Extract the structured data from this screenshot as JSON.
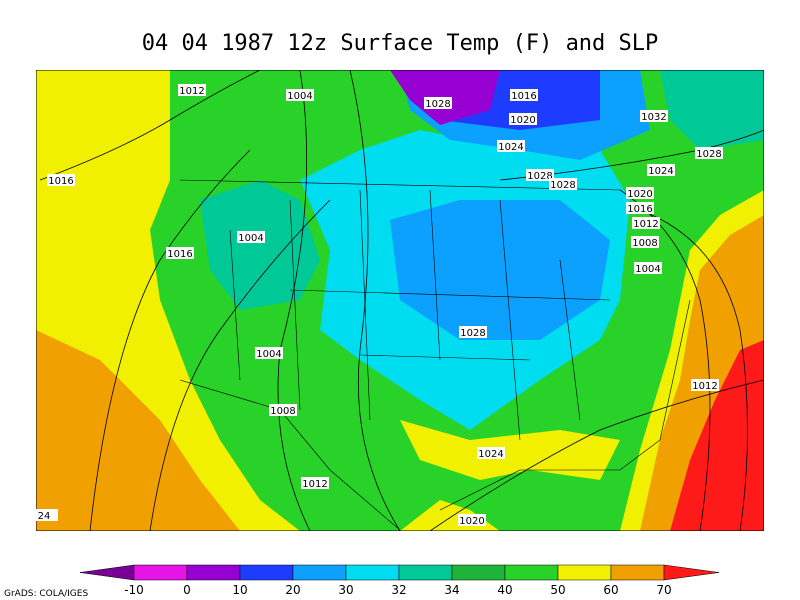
{
  "title": "04 04 1987 12z Surface Temp (F) and SLP",
  "contour_labels": [
    1012,
    1004,
    1028,
    1016,
    1020,
    1032,
    1024,
    1028,
    1028,
    1024,
    1028,
    1016,
    1020,
    1016,
    1012,
    1008,
    1004,
    1016,
    1004,
    1028,
    1004,
    1012,
    1008,
    1024,
    1012,
    1020,
    24
  ],
  "colorbar": {
    "labels": [
      -10,
      0,
      10,
      20,
      30,
      32,
      34,
      40,
      50,
      60,
      70
    ],
    "colors": [
      "#780096",
      "#e614e6",
      "#9600d2",
      "#1e3cff",
      "#0ca0ff",
      "#00dcf0",
      "#00c896",
      "#1eb43c",
      "#28d228",
      "#f0f000",
      "#f0a000",
      "#ff1a1a"
    ]
  },
  "credit": "GrADS: COLA/IGES"
}
